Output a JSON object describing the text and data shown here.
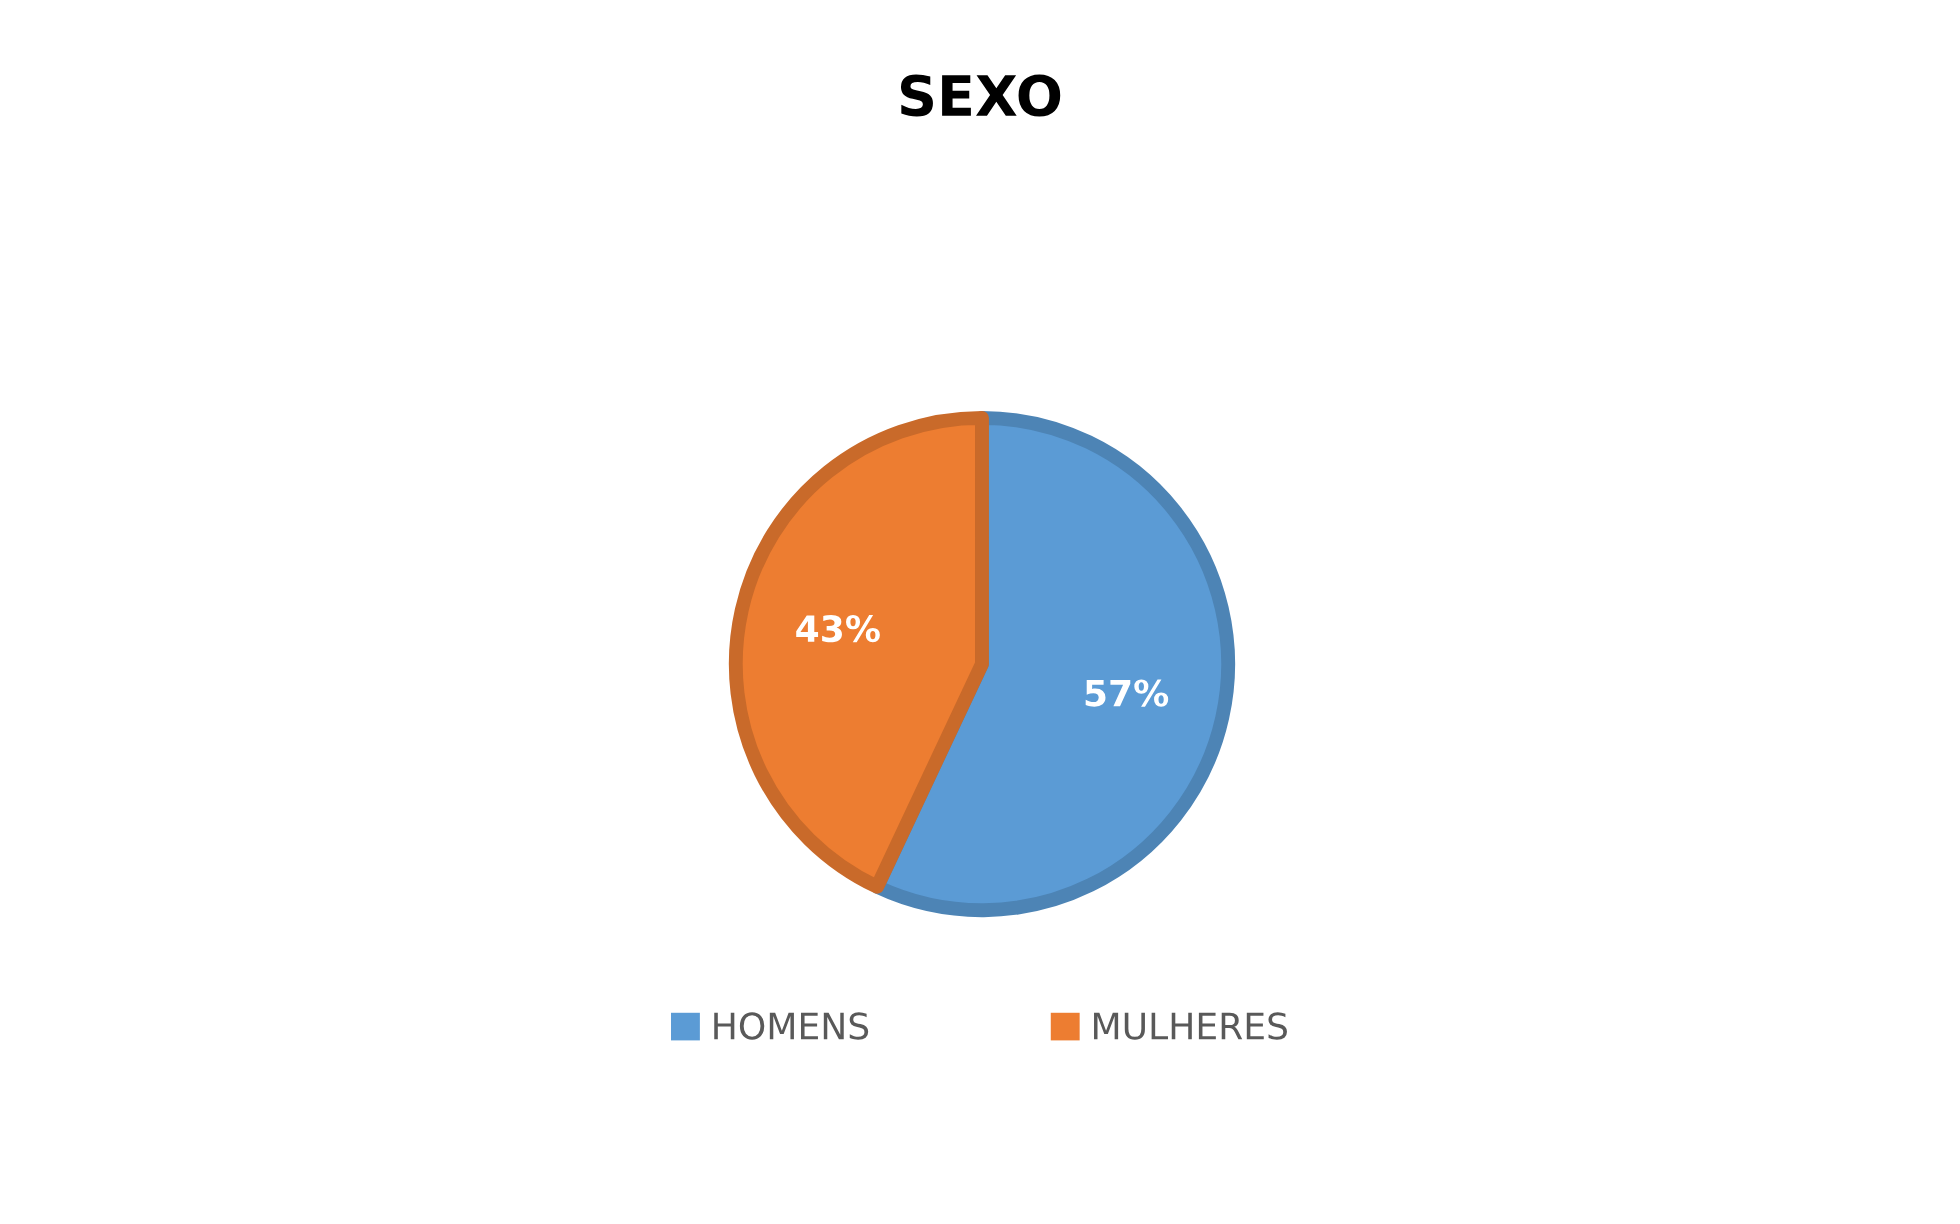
{
  "chart_data": {
    "type": "pie",
    "title": "SEXO",
    "categories": [
      "HOMENS",
      "MULHERES"
    ],
    "values": [
      57,
      43
    ],
    "colors": [
      "#5b9bd5",
      "#ed7d31"
    ],
    "value_labels": [
      "57%",
      "43%"
    ],
    "legend": "bottom"
  }
}
